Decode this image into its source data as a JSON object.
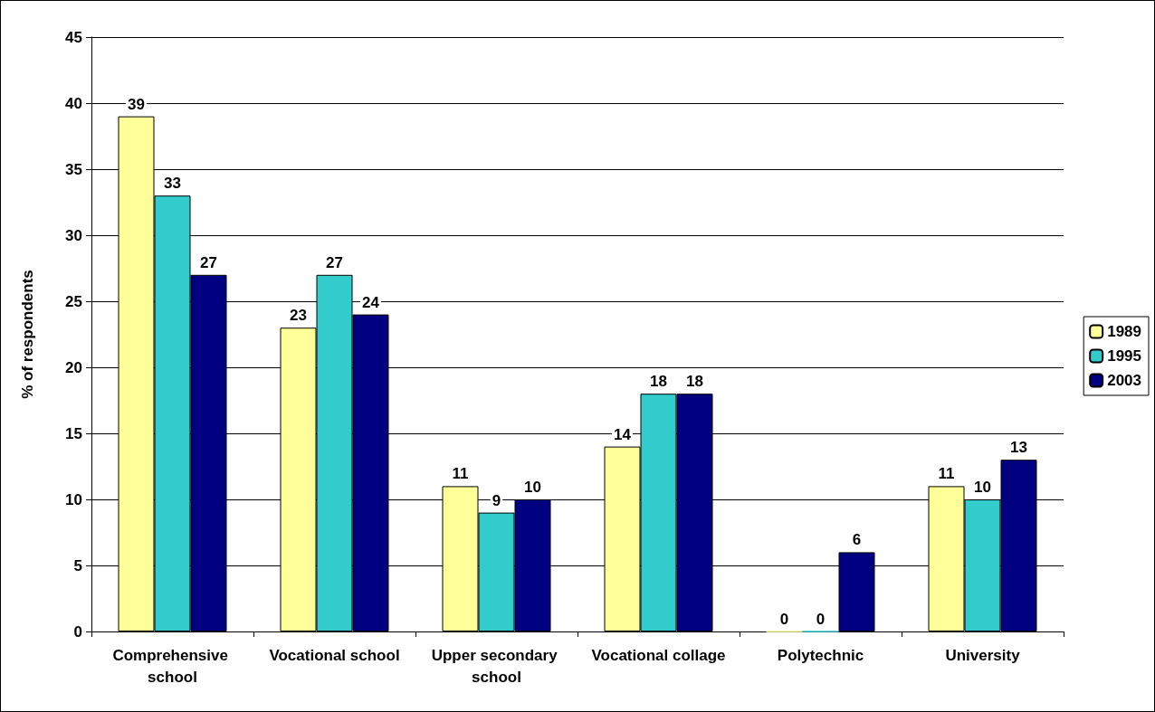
{
  "chart_data": {
    "type": "bar",
    "ylabel": "% of respondents",
    "categories": [
      "Comprehensive school",
      "Vocational school",
      "Upper secondary school",
      "Vocational collage",
      "Polytechnic",
      "University"
    ],
    "series": [
      {
        "name": "1989",
        "color": "#ffff99",
        "values": [
          39,
          23,
          11,
          14,
          0,
          11
        ]
      },
      {
        "name": "1995",
        "color": "#33cccc",
        "values": [
          33,
          27,
          9,
          18,
          0,
          10
        ]
      },
      {
        "name": "2003",
        "color": "#000080",
        "values": [
          27,
          24,
          10,
          18,
          6,
          13
        ]
      }
    ],
    "ylim": [
      0,
      45
    ],
    "yticks": [
      0,
      5,
      10,
      15,
      20,
      25,
      30,
      35,
      40,
      45
    ],
    "grid": "y",
    "legend": "right",
    "data_labels": true
  }
}
